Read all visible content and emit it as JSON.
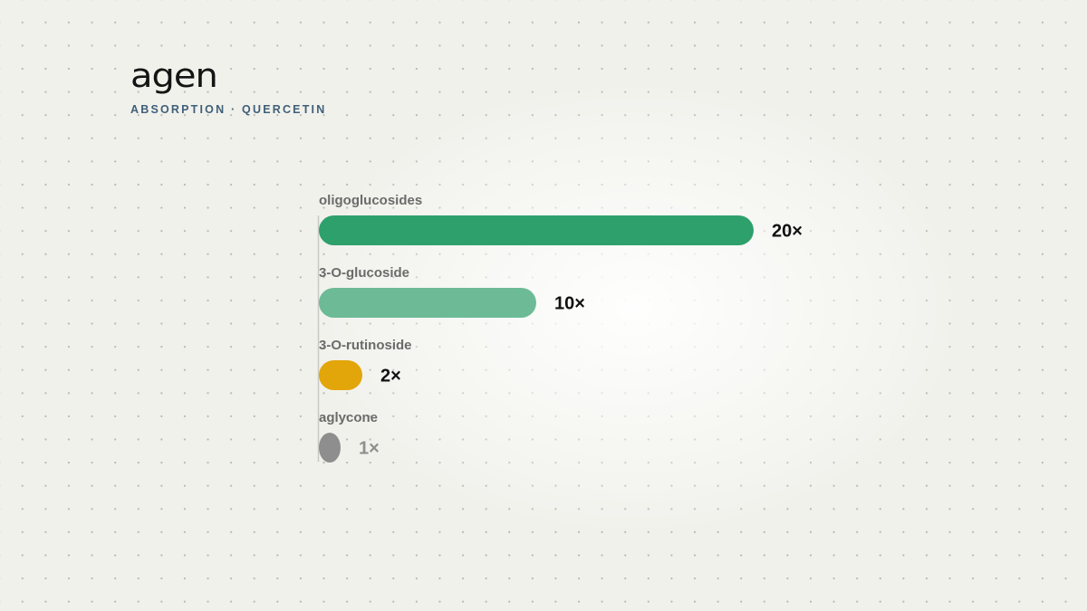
{
  "header": {
    "logo": "agen",
    "subtitle": "ABSORPTION · QUERCETIN"
  },
  "chart_data": {
    "type": "bar",
    "orientation": "horizontal",
    "categories": [
      "oligoglucosides",
      "3-O-glucoside",
      "3-O-rutinoside",
      "aglycone"
    ],
    "values": [
      20,
      10,
      2,
      1
    ],
    "value_labels": [
      "20×",
      "10×",
      "2×",
      "1×"
    ],
    "colors": [
      "#2ea06c",
      "#6cbb96",
      "#e2a50a",
      "#8e8e8e"
    ],
    "label_colors": [
      "#111111",
      "#111111",
      "#111111",
      "#8e8e8e"
    ],
    "category_label_color": "#6b6b6b",
    "xlim": [
      0,
      20
    ],
    "grid": false,
    "legend": "none"
  }
}
